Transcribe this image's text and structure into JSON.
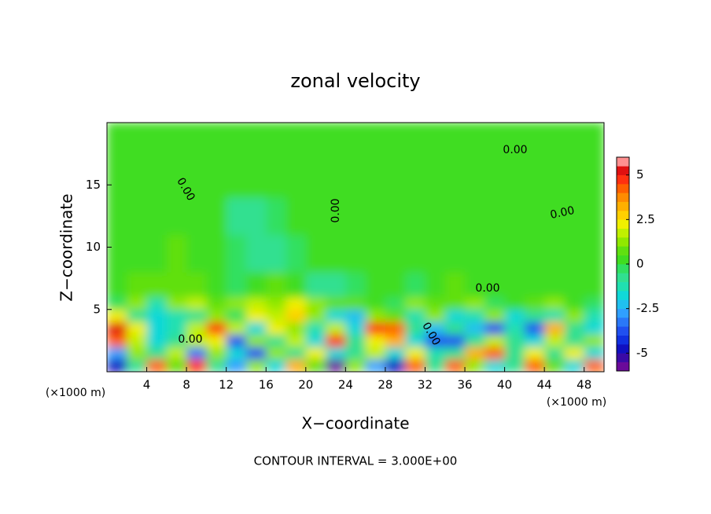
{
  "chart_data": {
    "type": "heatmap",
    "title": "zonal velocity",
    "x_label": "X−coordinate",
    "y_label": "Z−coordinate",
    "y_unit_label": "(×1000 m)",
    "x_unit_label": "(×1000 m)",
    "footnote": "CONTOUR INTERVAL = 3.000E+00",
    "contour_labels": [
      "0.00",
      "0.00",
      "0.00",
      "0.00",
      "0.00",
      "0.00",
      "0.00"
    ],
    "xlim": [
      0,
      50
    ],
    "ylim": [
      0,
      20
    ],
    "xticks": [
      4,
      8,
      12,
      16,
      20,
      24,
      28,
      32,
      36,
      40,
      44,
      48
    ],
    "yticks": [
      5,
      10,
      15
    ],
    "x_edges": [
      0,
      2,
      4,
      6,
      8,
      10,
      12,
      14,
      16,
      18,
      20,
      22,
      24,
      26,
      28,
      30,
      32,
      34,
      36,
      38,
      40,
      42,
      44,
      46,
      48,
      50
    ],
    "y_edges": [
      0,
      1,
      2,
      3,
      4,
      5,
      6,
      8,
      11,
      14,
      17,
      20
    ],
    "z": [
      [
        -5,
        -1,
        4,
        0.5,
        4.5,
        -1,
        -3,
        1,
        -2,
        3,
        0.5,
        -6,
        1,
        -3,
        -5,
        4,
        -1,
        4,
        1,
        -2,
        -1,
        4,
        0.5,
        -2,
        4
      ],
      [
        -3,
        1,
        -1,
        1.5,
        -3.5,
        1,
        -2,
        -4,
        1,
        -1,
        2,
        -2,
        -1,
        1.5,
        -2,
        2,
        -1.5,
        -1,
        3,
        4,
        -1,
        2,
        -1,
        2,
        -2
      ],
      [
        4,
        1.5,
        -2,
        -1,
        1.5,
        2,
        -4,
        1,
        -1,
        1.5,
        -2,
        4.5,
        -1,
        2,
        3,
        -2,
        -4,
        -4,
        -1,
        1.5,
        -1,
        -2,
        1.5,
        -1,
        1
      ],
      [
        5,
        2,
        -2,
        -1.5,
        1.5,
        4.5,
        1.5,
        -2,
        2,
        1,
        -1.5,
        1.5,
        -2,
        4.5,
        4,
        -1,
        -2.5,
        -1,
        -2.5,
        -4,
        -1.5,
        -4,
        3,
        -1,
        -2
      ],
      [
        2,
        -1,
        -2,
        -1.5,
        -1,
        1,
        -0.5,
        2,
        1.5,
        2.5,
        1,
        -2,
        -2.5,
        1,
        0.5,
        -1.5,
        1,
        -2,
        -1.5,
        1,
        -2,
        -1,
        -1.5,
        1,
        -1.5
      ],
      [
        -0.5,
        1,
        -1.5,
        1,
        1.5,
        0.5,
        1,
        1.5,
        1,
        2,
        1,
        0.5,
        0.8,
        0.3,
        -0.5,
        1,
        0.5,
        0.8,
        1,
        -0.5,
        0.3,
        0.8,
        1,
        0.3,
        -0.5
      ],
      [
        0.2,
        0.8,
        0.6,
        0.5,
        0.7,
        0.3,
        -0.3,
        0.2,
        0.6,
        0.3,
        -0.6,
        -0.7,
        -0.4,
        0.2,
        0.3,
        -0.3,
        0.2,
        0.6,
        0.2,
        0.3,
        0.2,
        0.3,
        0.2,
        0.2,
        0.2
      ],
      [
        0.3,
        0.3,
        0.3,
        0.6,
        0.3,
        0.3,
        -0.5,
        -0.8,
        -0.7,
        -0.3,
        0.3,
        0.3,
        0.3,
        0.3,
        0.3,
        0.3,
        0.3,
        0.3,
        0.3,
        0.3,
        0.3,
        0.3,
        0.3,
        0.3,
        0.3
      ],
      [
        0.3,
        0.3,
        0.3,
        0.3,
        0.3,
        0.3,
        -0.6,
        -0.9,
        -0.4,
        0.3,
        0.3,
        0.3,
        0.3,
        0.3,
        0.3,
        0.3,
        0.3,
        0.3,
        0.3,
        0.3,
        0.3,
        0.3,
        0.3,
        0.3,
        0.3
      ],
      [
        0.3,
        0.3,
        0.3,
        0.3,
        0.3,
        0.3,
        0.3,
        0.3,
        0.3,
        0.3,
        0.3,
        0.3,
        0.3,
        0.3,
        0.3,
        0.3,
        0.3,
        0.3,
        0.3,
        0.3,
        0.3,
        0.3,
        0.3,
        0.3,
        0.3
      ],
      [
        0.3,
        0.3,
        0.3,
        0.3,
        0.3,
        0.3,
        0.3,
        0.3,
        0.3,
        0.3,
        0.3,
        0.3,
        0.3,
        0.3,
        0.3,
        0.3,
        0.3,
        0.3,
        0.3,
        0.3,
        0.3,
        0.3,
        0.3,
        0.3,
        0.3
      ]
    ],
    "colorbar": {
      "clim": [
        -6,
        6
      ],
      "ticks": [
        -5,
        -2.5,
        0,
        2.5,
        5
      ],
      "colors": [
        "#6a0a9a",
        "#3a0aa6",
        "#1010c0",
        "#1030e0",
        "#2050f0",
        "#2a78f8",
        "#30a0ff",
        "#20c0f0",
        "#10d8d8",
        "#20e0b0",
        "#30e090",
        "#30e060",
        "#40dd20",
        "#60e010",
        "#90e800",
        "#c0f000",
        "#f0f000",
        "#ffd000",
        "#ffb000",
        "#ff8c00",
        "#ff6000",
        "#ff3010",
        "#e01010",
        "#ff9090"
      ]
    }
  }
}
